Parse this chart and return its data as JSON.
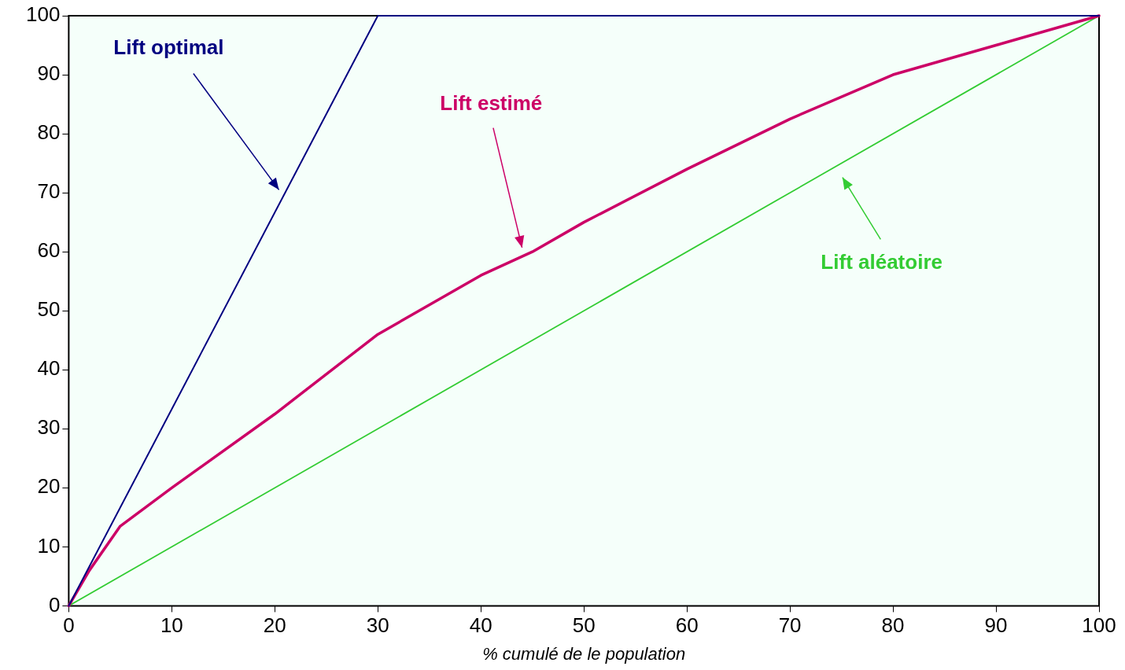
{
  "chart_data": {
    "type": "line",
    "xlabel": "% cumulé de le population",
    "xlim": [
      0,
      100
    ],
    "xticks": [
      0,
      10,
      20,
      30,
      40,
      50,
      60,
      70,
      80,
      90,
      100
    ],
    "ylim": [
      0,
      100
    ],
    "yticks": [
      0,
      10,
      20,
      30,
      40,
      50,
      60,
      70,
      80,
      90,
      100
    ],
    "grid": false,
    "legend": false,
    "marker": "none",
    "line_style": "solid",
    "series": [
      {
        "color": "#000080",
        "x": [
          0,
          30,
          100
        ],
        "values": [
          0,
          100,
          100
        ]
      },
      {
        "color": "#cc0066",
        "x": [
          0,
          2,
          5,
          10,
          20,
          30,
          40,
          45,
          50,
          60,
          70,
          80,
          90,
          100
        ],
        "values": [
          0,
          6,
          13.5,
          20,
          32.5,
          46,
          56,
          60,
          65,
          74,
          82.5,
          90,
          95,
          100
        ]
      },
      {
        "color": "#33cc33",
        "x": [
          0,
          100
        ],
        "values": [
          0,
          100
        ]
      }
    ],
    "annotations": [
      "Lift optimal",
      "Lift estimé",
      "Lift aléatoire"
    ]
  }
}
